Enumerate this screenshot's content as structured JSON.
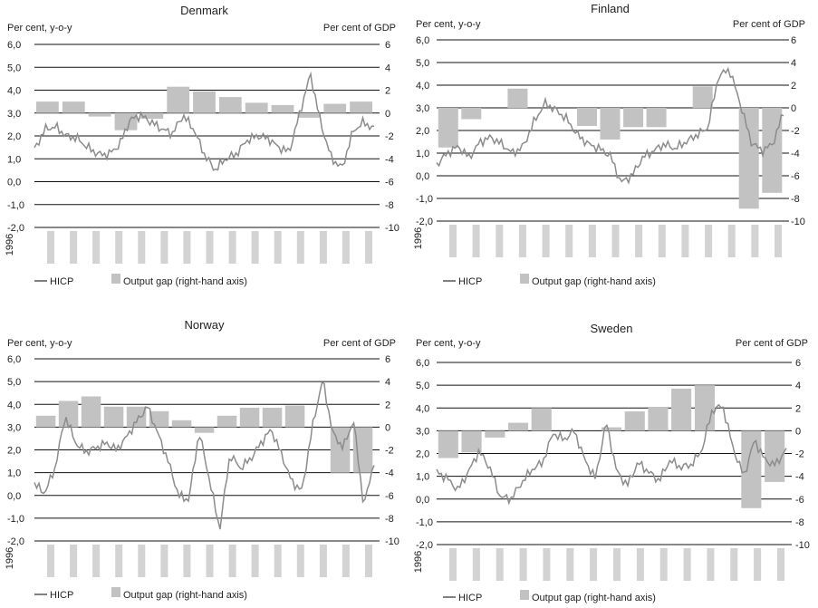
{
  "chart_data": [
    {
      "type": "bar+line",
      "title": "Denmark",
      "left_axis_caption": "Per cent, y-o-y",
      "right_axis_caption": "Per cent of GDP",
      "left_ticks": [
        "6,0",
        "5,0",
        "4,0",
        "3,0",
        "2,0",
        "1,0",
        "0,0",
        "-1,0",
        "-2,0"
      ],
      "right_ticks": [
        "6",
        "4",
        "2",
        "0",
        "-2",
        "-4",
        "-6",
        "-8",
        "-10"
      ],
      "x_first_label": "1996",
      "legend": {
        "line": "HICP",
        "bar": "Output gap (right-hand axis)"
      },
      "ylim_left": [
        -2,
        6
      ],
      "ylim_right": [
        -10,
        6
      ],
      "output_gap": [
        1.0,
        1.0,
        -0.3,
        -1.5,
        -0.5,
        2.3,
        1.9,
        1.4,
        0.9,
        0.7,
        -0.4,
        0.8,
        1.0
      ],
      "hicp_anchors": [
        1.4,
        2.3,
        2.4,
        2.0,
        1.9,
        1.5,
        1.2,
        1.2,
        1.6,
        2.7,
        2.9,
        2.6,
        2.3,
        2.1,
        2.9,
        2.3,
        1.2,
        0.5,
        1.0,
        1.2,
        1.8,
        2.0,
        1.9,
        1.5,
        1.3,
        3.0,
        4.7,
        2.5,
        1.0,
        0.6,
        2.2,
        2.6,
        2.3
      ]
    },
    {
      "type": "bar+line",
      "title": "Finland",
      "left_axis_caption": "Per cent, y-o-y",
      "right_axis_caption": "Per cent of GDP",
      "left_ticks": [
        "6,0",
        "5,0",
        "4,0",
        "3,0",
        "2,0",
        "1,0",
        "0,0",
        "-1,0",
        "-2,0"
      ],
      "right_ticks": [
        "6",
        "4",
        "2",
        "0",
        "-2",
        "-4",
        "-6",
        "-8",
        "-10"
      ],
      "x_first_label": "1996",
      "legend": {
        "line": "HICP",
        "bar": "Output gap (right-hand axis)"
      },
      "ylim_left": [
        -2,
        6
      ],
      "ylim_right": [
        -10,
        6
      ],
      "output_gap": [
        -3.5,
        -1.0,
        0.0,
        1.7,
        0.0,
        0.0,
        -1.6,
        -2.8,
        -1.7,
        -1.7,
        0.0,
        1.9,
        0.0,
        -8.9,
        -7.5
      ],
      "hicp_anchors": [
        0.5,
        1.0,
        1.3,
        0.8,
        1.5,
        1.7,
        1.4,
        1.0,
        1.3,
        2.4,
        3.2,
        2.9,
        2.5,
        1.8,
        1.4,
        1.2,
        0.9,
        -0.3,
        0.0,
        0.8,
        1.1,
        1.4,
        1.2,
        1.5,
        1.8,
        2.1,
        4.4,
        4.7,
        3.2,
        1.5,
        1.1,
        1.4,
        2.8
      ]
    },
    {
      "type": "bar+line",
      "title": "Norway",
      "left_axis_caption": "Per cent, y-o-y",
      "right_axis_caption": "Per cent of GDP",
      "left_ticks": [
        "6,0",
        "5,0",
        "4,0",
        "3,0",
        "2,0",
        "1,0",
        "0,0",
        "-1,0",
        "-2,0"
      ],
      "right_ticks": [
        "6",
        "4",
        "2",
        "0",
        "-2",
        "-4",
        "-6",
        "-8",
        "-10"
      ],
      "x_first_label": "1996",
      "legend": {
        "line": "HICP",
        "bar": "Output gap (right-hand axis)"
      },
      "ylim_left": [
        -2,
        6
      ],
      "ylim_right": [
        -10,
        6
      ],
      "output_gap": [
        1.0,
        2.3,
        2.7,
        1.8,
        1.8,
        1.4,
        0.6,
        -0.5,
        1.0,
        1.7,
        1.7,
        1.9,
        0.0,
        -4.0,
        -4.0
      ],
      "hicp_anchors": [
        0.5,
        0.1,
        1.2,
        3.5,
        2.3,
        1.9,
        2.1,
        2.3,
        2.0,
        2.6,
        3.3,
        3.9,
        2.7,
        1.5,
        0.0,
        -0.2,
        2.8,
        0.7,
        -1.5,
        1.8,
        1.2,
        1.6,
        2.3,
        2.9,
        1.8,
        0.6,
        0.2,
        3.0,
        5.1,
        2.7,
        2.1,
        3.3,
        -0.5,
        1.5
      ]
    },
    {
      "type": "bar+line",
      "title": "Sweden",
      "left_axis_caption": "Per cent, y-o-y",
      "right_axis_caption": "Per cent of GDP",
      "left_ticks": [
        "6,0",
        "5,0",
        "4,0",
        "3,0",
        "2,0",
        "1,0",
        "0,0",
        "-1,0",
        "-2,0"
      ],
      "right_ticks": [
        "6",
        "4",
        "2",
        "0",
        "-2",
        "-4",
        "-6",
        "-8",
        "-10"
      ],
      "x_first_label": "1996",
      "legend": {
        "line": "HICP",
        "bar": "Output gap (right-hand axis)"
      },
      "ylim_left": [
        -2,
        6
      ],
      "ylim_right": [
        -10,
        6
      ],
      "output_gap": [
        -2.4,
        -1.9,
        -0.6,
        0.7,
        2.0,
        0.0,
        0.0,
        0.3,
        1.7,
        2.1,
        3.7,
        4.0,
        0.0,
        -6.8,
        -4.5
      ],
      "hicp_anchors": [
        1.2,
        0.9,
        0.4,
        1.2,
        2.1,
        1.4,
        0.1,
        0.0,
        0.7,
        1.3,
        1.6,
        2.9,
        2.6,
        3.0,
        1.7,
        0.9,
        3.4,
        1.2,
        0.6,
        1.6,
        1.2,
        0.8,
        1.7,
        1.4,
        1.5,
        2.1,
        3.9,
        4.1,
        2.2,
        1.0,
        2.6,
        1.7,
        1.5,
        2.2
      ]
    }
  ]
}
